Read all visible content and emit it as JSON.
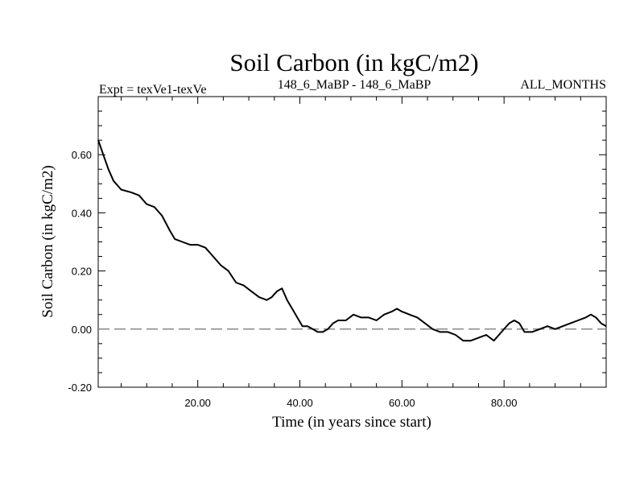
{
  "chart_data": {
    "type": "line",
    "title": "Soil Carbon (in kgC/m2)",
    "subtitle_left": "Expt = texVe1-texVe",
    "subtitle_center": "148_6_MaBP - 148_6_MaBP",
    "subtitle_right": "ALL_MONTHS",
    "xlabel": "Time (in years since start)",
    "ylabel": "Soil Carbon (in kgC/m2)",
    "xlim": [
      0.5,
      100
    ],
    "ylim": [
      -0.2,
      0.8
    ],
    "x_ticks": [
      20,
      40,
      60,
      80
    ],
    "x_tick_labels": [
      "20.00",
      "40.00",
      "60.00",
      "80.00"
    ],
    "y_ticks": [
      -0.2,
      0.0,
      0.2,
      0.4,
      0.6
    ],
    "y_tick_labels": [
      "-0.20",
      "0.00",
      "0.20",
      "0.40",
      "0.60"
    ],
    "reference_line": {
      "y": 0.0,
      "style": "dashed",
      "color": "#888888"
    },
    "line_color": "#000000",
    "series": [
      {
        "name": "Soil Carbon",
        "x": [
          0.5,
          1.5,
          2.5,
          3.5,
          5,
          7,
          8.5,
          10,
          11.5,
          13,
          14.5,
          15.5,
          17,
          18.5,
          20,
          21.5,
          23,
          24.5,
          26,
          27.5,
          29,
          30.5,
          32,
          33.5,
          34.5,
          35.5,
          36.5,
          37.5,
          38.5,
          39.5,
          40.5,
          41.5,
          42.5,
          43.5,
          44.5,
          45.5,
          46.5,
          47.5,
          49,
          50.5,
          52,
          53.5,
          55,
          56.5,
          58,
          59,
          60,
          61.5,
          63,
          64.5,
          66,
          67.5,
          69,
          70.5,
          72,
          73.5,
          75,
          76.5,
          78,
          79.5,
          81,
          82,
          83,
          84,
          85.5,
          87,
          88.5,
          90,
          91.5,
          93,
          94.5,
          96,
          97,
          98,
          99,
          100
        ],
        "y": [
          0.65,
          0.6,
          0.55,
          0.51,
          0.48,
          0.47,
          0.46,
          0.43,
          0.42,
          0.39,
          0.34,
          0.31,
          0.3,
          0.29,
          0.29,
          0.28,
          0.25,
          0.22,
          0.2,
          0.16,
          0.15,
          0.13,
          0.11,
          0.1,
          0.11,
          0.13,
          0.14,
          0.1,
          0.07,
          0.04,
          0.01,
          0.01,
          0.0,
          -0.01,
          -0.01,
          0.0,
          0.02,
          0.03,
          0.03,
          0.05,
          0.04,
          0.04,
          0.03,
          0.05,
          0.06,
          0.07,
          0.06,
          0.05,
          0.04,
          0.02,
          0.0,
          -0.01,
          -0.01,
          -0.02,
          -0.04,
          -0.04,
          -0.03,
          -0.02,
          -0.04,
          -0.01,
          0.02,
          0.03,
          0.02,
          -0.01,
          -0.01,
          0.0,
          0.01,
          0.0,
          0.01,
          0.02,
          0.03,
          0.04,
          0.05,
          0.04,
          0.02,
          0.01
        ]
      }
    ]
  }
}
